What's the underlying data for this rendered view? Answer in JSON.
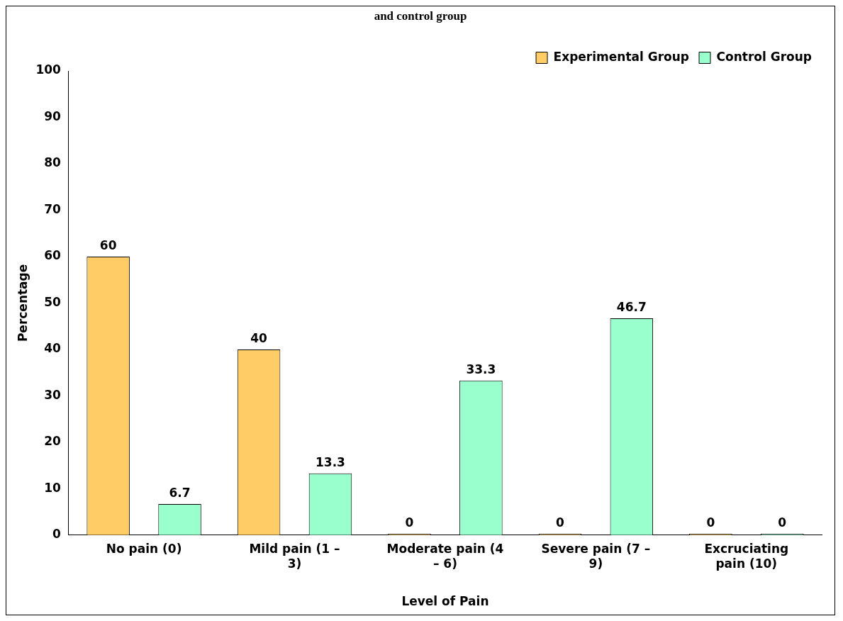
{
  "chart_data": {
    "type": "bar",
    "title": "and control group",
    "xlabel": "Level of Pain",
    "ylabel": "Percentage",
    "categories": [
      "No pain (0)",
      "Mild pain (1 – 3)",
      "Moderate pain (4 – 6)",
      "Severe pain (7 – 9)",
      "Excruciating pain (10)"
    ],
    "series": [
      {
        "name": "Experimental Group",
        "color": "#ffcc66",
        "values": [
          60,
          40,
          0,
          0,
          0
        ]
      },
      {
        "name": "Control Group",
        "color": "#99ffcc",
        "values": [
          6.7,
          13.3,
          33.3,
          46.7,
          0
        ]
      }
    ],
    "ylim": [
      0,
      100
    ],
    "yticks": [
      0,
      10,
      20,
      30,
      40,
      50,
      60,
      70,
      80,
      90,
      100
    ],
    "grid": false,
    "legend": "top right",
    "data_labels": true
  }
}
